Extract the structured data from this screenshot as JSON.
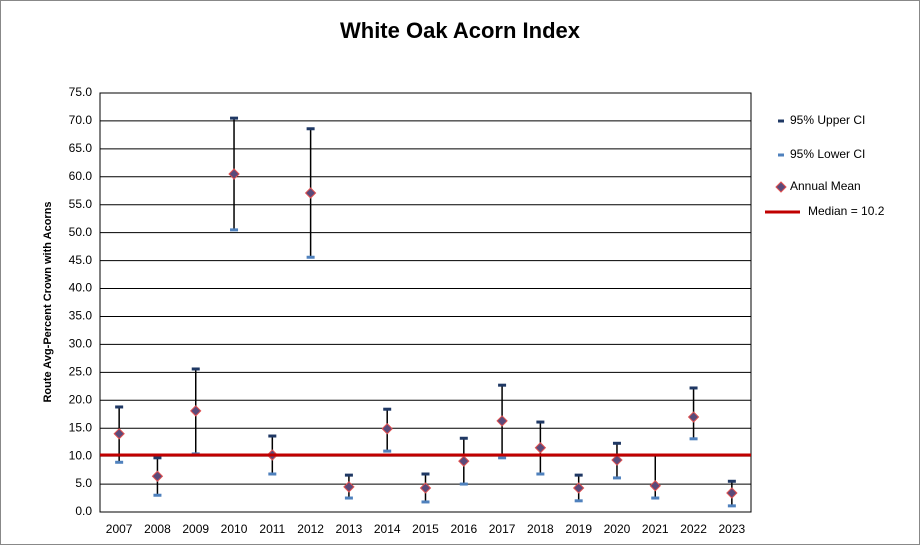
{
  "chart_data": {
    "type": "errorbar",
    "title": "White Oak Acorn Index",
    "y_label": "Route Avg-Percent Crown with Acorns",
    "categories": [
      "2007",
      "2008",
      "2009",
      "2010",
      "2011",
      "2012",
      "2013",
      "2014",
      "2015",
      "2016",
      "2017",
      "2018",
      "2019",
      "2020",
      "2021",
      "2022",
      "2023"
    ],
    "series": [
      {
        "name": "95% Upper CI",
        "color": "#1f3864",
        "values": [
          18.8,
          9.7,
          25.6,
          70.5,
          13.6,
          68.6,
          6.6,
          18.4,
          6.8,
          13.2,
          22.7,
          16.1,
          6.6,
          12.3,
          10.2,
          22.2,
          5.5
        ]
      },
      {
        "name": "95% Lower CI",
        "color": "#4f81bd",
        "values": [
          8.9,
          3.0,
          10.4,
          50.5,
          6.8,
          45.6,
          2.5,
          10.9,
          1.8,
          5.0,
          9.7,
          6.8,
          2.0,
          6.1,
          2.5,
          13.1,
          1.1
        ]
      },
      {
        "name": "Annual Mean",
        "color": "#5a4a7a",
        "values": [
          14.0,
          6.4,
          18.1,
          60.5,
          10.2,
          57.1,
          4.5,
          14.9,
          4.3,
          9.1,
          16.3,
          11.5,
          4.3,
          9.3,
          4.7,
          17.0,
          3.4
        ]
      }
    ],
    "median": {
      "name": "Median = 10.2",
      "value": 10.2,
      "color": "#c00000"
    },
    "ylim": [
      0,
      75
    ],
    "yticks": [
      {
        "value": 0,
        "label": "0.0"
      },
      {
        "value": 5,
        "label": "5.0"
      },
      {
        "value": 10,
        "label": "10.0"
      },
      {
        "value": 15,
        "label": "15.0"
      },
      {
        "value": 20,
        "label": "20.0"
      },
      {
        "value": 25,
        "label": "25.0"
      },
      {
        "value": 30,
        "label": "30.0"
      },
      {
        "value": 35,
        "label": "35.0"
      },
      {
        "value": 40,
        "label": "40.0"
      },
      {
        "value": 45,
        "label": "45.0"
      },
      {
        "value": 50,
        "label": "50.0"
      },
      {
        "value": 55,
        "label": "55.0"
      },
      {
        "value": 60,
        "label": "60.0"
      },
      {
        "value": 65,
        "label": "65.0"
      },
      {
        "value": 70,
        "label": "70.0"
      },
      {
        "value": 75,
        "label": "75.0"
      }
    ],
    "grid": true,
    "legend": "right"
  }
}
